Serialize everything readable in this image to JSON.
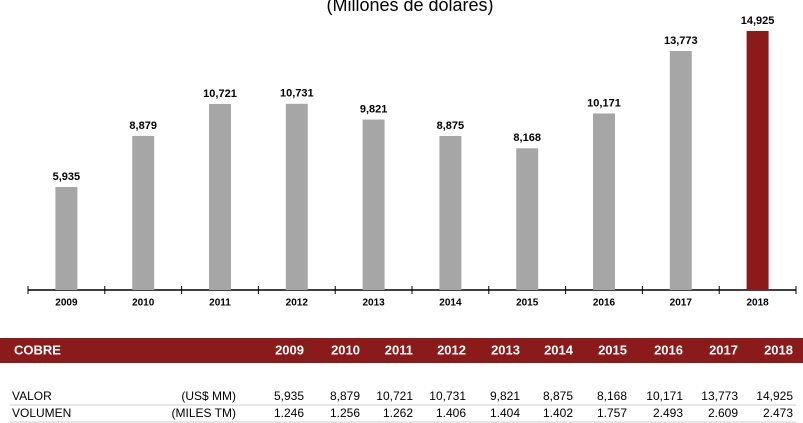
{
  "chart_data": {
    "type": "bar",
    "subtitle": "(Millones de dólares)",
    "categories": [
      "2009",
      "2010",
      "2011",
      "2012",
      "2013",
      "2014",
      "2015",
      "2016",
      "2017",
      "2018"
    ],
    "values": [
      5935,
      8879,
      10721,
      10731,
      9821,
      8875,
      8168,
      10171,
      13773,
      14925
    ],
    "value_labels": [
      "5,935",
      "8,879",
      "10,721",
      "10,731",
      "9,821",
      "8,875",
      "8,168",
      "10,171",
      "13,773",
      "14,925"
    ],
    "colors": [
      "#a6a6a6",
      "#a6a6a6",
      "#a6a6a6",
      "#a6a6a6",
      "#a6a6a6",
      "#a6a6a6",
      "#a6a6a6",
      "#a6a6a6",
      "#a6a6a6",
      "#8b1a1a"
    ]
  },
  "table": {
    "header": [
      "COBRE",
      "2009",
      "2010",
      "2011",
      "2012",
      "2013",
      "2014",
      "2015",
      "2016",
      "2017",
      "2018"
    ],
    "rows": [
      [
        "VALOR",
        "(US$ MM)",
        "5,935",
        "8,879",
        "10,721",
        "10,731",
        "9,821",
        "8,875",
        "8,168",
        "10,171",
        "13,773",
        "14,925"
      ],
      [
        "VOLUMEN",
        "(MILES TM)",
        "1.246",
        "1.256",
        "1.262",
        "1.406",
        "1.404",
        "1.402",
        "1.757",
        "2.493",
        "2.609",
        "2.473"
      ]
    ]
  }
}
